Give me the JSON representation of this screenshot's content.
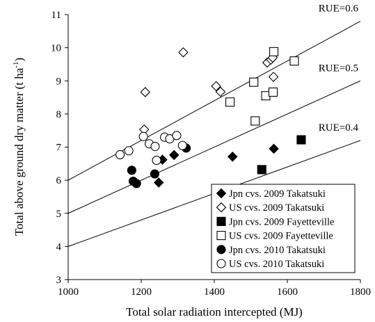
{
  "chart_data": {
    "type": "scatter",
    "xlabel": "Total solar radiation intercepted (MJ)",
    "ylabel": "Total above ground dry matter (t ha",
    "ylabel_sup": "-1",
    "ylabel_close": ")",
    "xlim": [
      1000,
      1800
    ],
    "ylim": [
      3,
      11
    ],
    "xticks": [
      1000,
      1200,
      1400,
      1600,
      1800
    ],
    "yticks": [
      3,
      4,
      5,
      6,
      7,
      8,
      9,
      10,
      11
    ],
    "grid": false,
    "legend_position": "bottom-right",
    "lines": [
      {
        "label": "RUE=0.6",
        "slope": 0.006,
        "intercept": 0
      },
      {
        "label": "RUE=0.5",
        "slope": 0.005,
        "intercept": 0
      },
      {
        "label": "RUE=0.4",
        "slope": 0.004,
        "intercept": 0
      }
    ],
    "series": [
      {
        "name": "Jpn cvs. 2009 Takatsuki",
        "marker": "diamond",
        "filled": true,
        "points": [
          [
            1258,
            6.62
          ],
          [
            1290,
            6.76
          ],
          [
            1248,
            5.93
          ],
          [
            1450,
            6.71
          ],
          [
            1563,
            6.95
          ]
        ]
      },
      {
        "name": "US cvs. 2009 Takatsuki",
        "marker": "diamond",
        "filled": false,
        "points": [
          [
            1208,
            7.53
          ],
          [
            1211,
            8.66
          ],
          [
            1315,
            9.86
          ],
          [
            1405,
            8.84
          ],
          [
            1417,
            8.67
          ],
          [
            1545,
            9.55
          ],
          [
            1555,
            9.64
          ],
          [
            1560,
            9.7
          ],
          [
            1562,
            9.12
          ]
        ]
      },
      {
        "name": "Jpn cvs. 2009 Fayetteville",
        "marker": "square",
        "filled": true,
        "points": [
          [
            1530,
            6.32
          ],
          [
            1638,
            7.22
          ]
        ]
      },
      {
        "name": "US cvs. 2009 Fayetteville",
        "marker": "square",
        "filled": false,
        "points": [
          [
            1443,
            8.36
          ],
          [
            1508,
            8.96
          ],
          [
            1512,
            7.79
          ],
          [
            1541,
            8.55
          ],
          [
            1561,
            8.66
          ],
          [
            1563,
            9.88
          ],
          [
            1619,
            9.6
          ]
        ]
      },
      {
        "name": "Jpn cvs. 2010 Takatsuki",
        "marker": "circle",
        "filled": true,
        "points": [
          [
            1174,
            6.3
          ],
          [
            1178,
            5.97
          ],
          [
            1187,
            5.9
          ],
          [
            1237,
            6.19
          ],
          [
            1323,
            6.97
          ]
        ]
      },
      {
        "name": "US cvs. 2010 Takatsuki",
        "marker": "circle",
        "filled": false,
        "points": [
          [
            1142,
            6.77
          ],
          [
            1166,
            6.89
          ],
          [
            1206,
            7.32
          ],
          [
            1222,
            7.1
          ],
          [
            1238,
            7.02
          ],
          [
            1242,
            6.6
          ],
          [
            1264,
            7.3
          ],
          [
            1278,
            7.25
          ],
          [
            1297,
            7.35
          ],
          [
            1313,
            7.05
          ]
        ]
      }
    ]
  }
}
